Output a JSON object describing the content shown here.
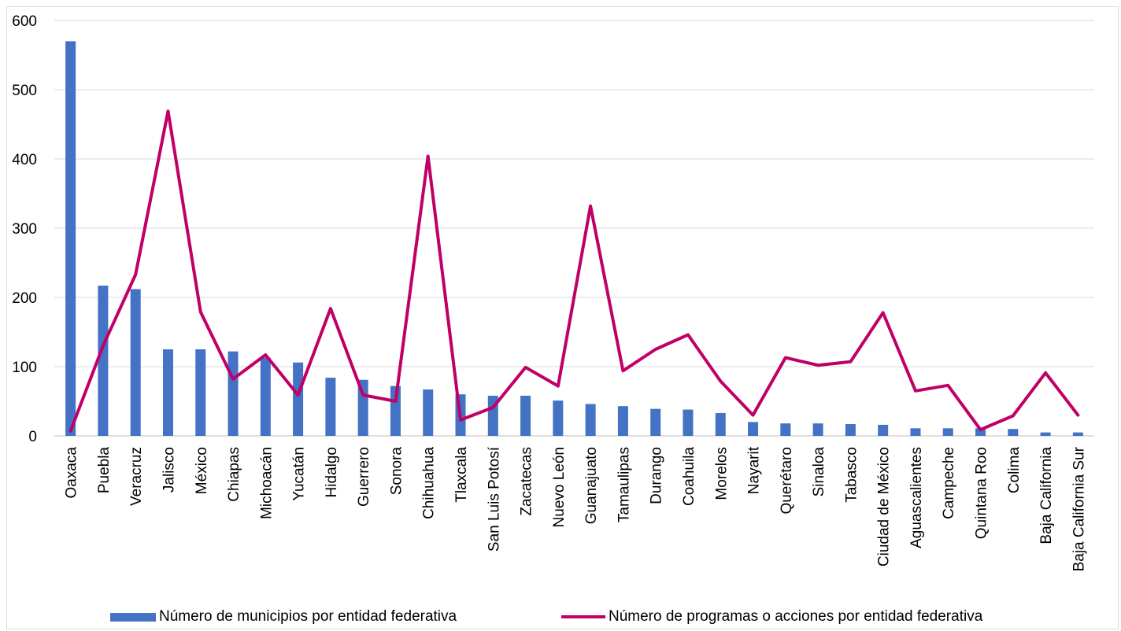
{
  "chart_data": {
    "type": "bar",
    "title": "",
    "xlabel": "",
    "ylabel": "",
    "ylim": [
      0,
      600
    ],
    "yticks": [
      0,
      100,
      200,
      300,
      400,
      500,
      600
    ],
    "grid": true,
    "legend_position": "bottom",
    "categories": [
      "Oaxaca",
      "Puebla",
      "Veracruz",
      "Jalisco",
      "México",
      "Chiapas",
      "Michoacán",
      "Yucatán",
      "Hidalgo",
      "Guerrero",
      "Sonora",
      "Chihuahua",
      "Tlaxcala",
      "San Luis Potosí",
      "Zacatecas",
      "Nuevo León",
      "Guanajuato",
      "Tamaulipas",
      "Durango",
      "Coahuila",
      "Morelos",
      "Nayarit",
      "Querétaro",
      "Sinaloa",
      "Tabasco",
      "Ciudad de México",
      "Aguascalientes",
      "Campeche",
      "Quintana Roo",
      "Colima",
      "Baja California",
      "Baja California Sur"
    ],
    "series": [
      {
        "name": "Número de municipios por entidad federativa",
        "type": "bar",
        "color": "#4472c4",
        "values": [
          570,
          217,
          212,
          125,
          125,
          122,
          113,
          106,
          84,
          81,
          72,
          67,
          60,
          58,
          58,
          51,
          46,
          43,
          39,
          38,
          33,
          20,
          18,
          18,
          17,
          16,
          11,
          11,
          11,
          10,
          5,
          5
        ]
      },
      {
        "name": "Número de programas o acciones por entidad federativa",
        "type": "line",
        "color": "#c00067",
        "values": [
          7,
          130,
          233,
          469,
          179,
          82,
          117,
          59,
          184,
          59,
          50,
          404,
          23,
          41,
          99,
          72,
          332,
          94,
          125,
          146,
          79,
          30,
          113,
          102,
          107,
          178,
          65,
          73,
          9,
          29,
          91,
          30
        ]
      }
    ]
  }
}
